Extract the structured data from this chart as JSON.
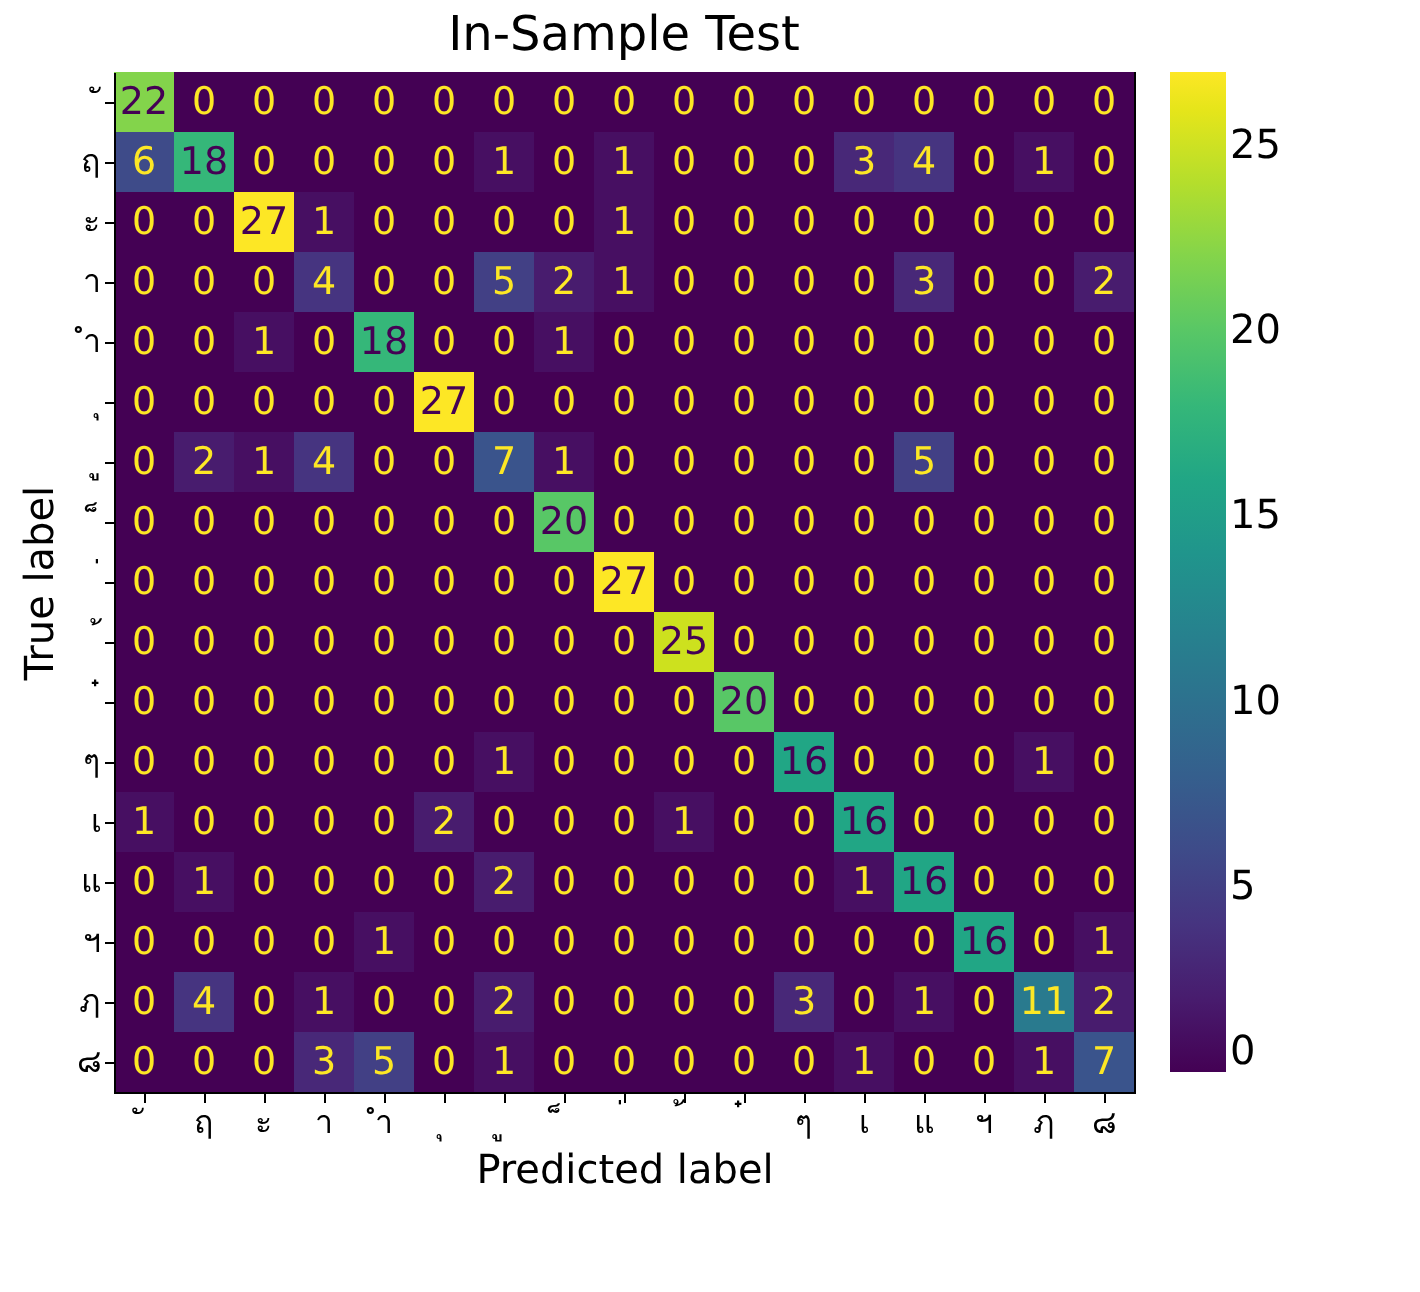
{
  "chart_data": {
    "type": "heatmap",
    "title": "In-Sample Test",
    "xlabel": "Predicted label",
    "ylabel": "True label",
    "categories": [
      "ั",
      "ฤ",
      "ะ",
      "า",
      "ำ",
      "ุ",
      "ู",
      "็",
      "่",
      "้",
      "๋",
      "ๆ",
      "เ",
      "แ",
      "ฯ",
      "ฦ",
      "๘"
    ],
    "y_categories": [
      "ั",
      "ฤ",
      "ะ",
      "า",
      "ำ",
      "ุ",
      "ู",
      "็",
      "่",
      "้",
      "๋",
      "ๆ",
      "เ",
      "แ",
      "ฯ",
      "ฦ",
      "๘"
    ],
    "cells": [
      [
        22,
        0,
        0,
        0,
        0,
        0,
        0,
        0,
        0,
        0,
        0,
        0,
        0,
        0,
        0,
        0,
        0
      ],
      [
        6,
        18,
        0,
        0,
        0,
        0,
        1,
        0,
        1,
        0,
        0,
        0,
        3,
        4,
        0,
        1,
        0
      ],
      [
        0,
        0,
        27,
        1,
        0,
        0,
        0,
        0,
        1,
        0,
        0,
        0,
        0,
        0,
        0,
        0,
        0
      ],
      [
        0,
        0,
        0,
        4,
        0,
        0,
        5,
        2,
        1,
        0,
        0,
        0,
        0,
        3,
        0,
        0,
        2
      ],
      [
        0,
        0,
        1,
        0,
        18,
        0,
        0,
        1,
        0,
        0,
        0,
        0,
        0,
        0,
        0,
        0,
        0
      ],
      [
        0,
        0,
        0,
        0,
        0,
        27,
        0,
        0,
        0,
        0,
        0,
        0,
        0,
        0,
        0,
        0,
        0
      ],
      [
        0,
        2,
        1,
        4,
        0,
        0,
        7,
        1,
        0,
        0,
        0,
        0,
        0,
        5,
        0,
        0,
        0
      ],
      [
        0,
        0,
        0,
        0,
        0,
        0,
        0,
        20,
        0,
        0,
        0,
        0,
        0,
        0,
        0,
        0,
        0
      ],
      [
        0,
        0,
        0,
        0,
        0,
        0,
        0,
        0,
        27,
        0,
        0,
        0,
        0,
        0,
        0,
        0,
        0
      ],
      [
        0,
        0,
        0,
        0,
        0,
        0,
        0,
        0,
        0,
        25,
        0,
        0,
        0,
        0,
        0,
        0,
        0
      ],
      [
        0,
        0,
        0,
        0,
        0,
        0,
        0,
        0,
        0,
        0,
        20,
        0,
        0,
        0,
        0,
        0,
        0
      ],
      [
        0,
        0,
        0,
        0,
        0,
        0,
        1,
        0,
        0,
        0,
        0,
        16,
        0,
        0,
        0,
        1,
        0
      ],
      [
        1,
        0,
        0,
        0,
        0,
        2,
        0,
        0,
        0,
        1,
        0,
        0,
        16,
        0,
        0,
        0,
        0
      ],
      [
        0,
        1,
        0,
        0,
        0,
        0,
        2,
        0,
        0,
        0,
        0,
        0,
        1,
        16,
        0,
        0,
        0
      ],
      [
        0,
        0,
        0,
        0,
        1,
        0,
        0,
        0,
        0,
        0,
        0,
        0,
        0,
        0,
        16,
        0,
        1
      ],
      [
        0,
        4,
        0,
        1,
        0,
        0,
        2,
        0,
        0,
        0,
        0,
        3,
        0,
        1,
        0,
        11,
        2
      ],
      [
        0,
        0,
        0,
        3,
        5,
        0,
        1,
        0,
        0,
        0,
        0,
        0,
        1,
        0,
        0,
        1,
        7
      ]
    ],
    "clim": [
      0,
      27
    ],
    "cticks": [
      0,
      5,
      10,
      15,
      20,
      25
    ],
    "data_labels": true,
    "grid": false
  }
}
